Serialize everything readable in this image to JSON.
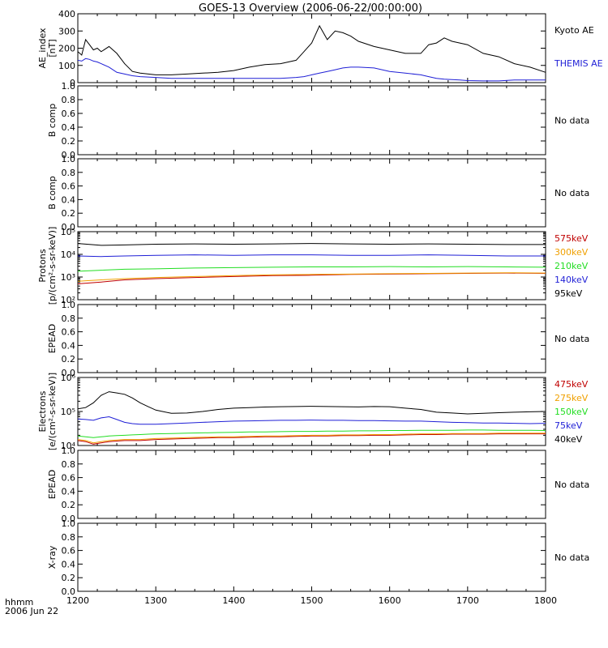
{
  "title": "GOES-13 Overview (2006-06-22/00:00:00)",
  "footer": {
    "line1": "hhmm",
    "line2": "2006 Jun 22"
  },
  "x_ticks": [
    "1200",
    "1300",
    "1400",
    "1500",
    "1600",
    "1700",
    "1800"
  ],
  "colors": {
    "black": "#000000",
    "blue": "#1f1fd6",
    "green": "#22dd22",
    "orange": "#f0a000",
    "red": "#c00000"
  },
  "chart_data": [
    {
      "type": "line",
      "ylabel": [
        "AE_index",
        "[nT]"
      ],
      "ylim": [
        0,
        400
      ],
      "yticks": [
        "0",
        "100",
        "200",
        "300",
        "400"
      ],
      "x": [
        1200,
        1205,
        1210,
        1215,
        1220,
        1225,
        1230,
        1240,
        1250,
        1260,
        1270,
        1280,
        1300,
        1320,
        1340,
        1360,
        1380,
        1400,
        1420,
        1440,
        1460,
        1480,
        1490,
        1500,
        1510,
        1520,
        1530,
        1540,
        1550,
        1560,
        1580,
        1600,
        1620,
        1640,
        1650,
        1660,
        1670,
        1680,
        1690,
        1700,
        1720,
        1740,
        1760,
        1780,
        1800
      ],
      "series": [
        {
          "name": "Kyoto AE",
          "color": "#000000",
          "values": [
            180,
            160,
            250,
            220,
            190,
            200,
            180,
            210,
            170,
            110,
            65,
            55,
            45,
            45,
            50,
            55,
            60,
            70,
            90,
            105,
            110,
            130,
            180,
            230,
            330,
            250,
            300,
            290,
            270,
            240,
            210,
            190,
            170,
            170,
            220,
            230,
            260,
            240,
            230,
            220,
            170,
            150,
            110,
            90,
            60
          ]
        },
        {
          "name": "THEMIS AE",
          "color": "#1f1fd6",
          "values": [
            130,
            125,
            140,
            135,
            125,
            120,
            110,
            90,
            60,
            50,
            40,
            35,
            30,
            25,
            25,
            25,
            25,
            25,
            25,
            25,
            25,
            30,
            35,
            45,
            55,
            65,
            75,
            85,
            90,
            90,
            85,
            65,
            55,
            45,
            35,
            25,
            20,
            18,
            15,
            12,
            10,
            10,
            15,
            15,
            15
          ]
        }
      ]
    },
    {
      "type": "line",
      "ylabel": [
        "B comp"
      ],
      "ylim": [
        0,
        1
      ],
      "yticks": [
        "0.0",
        "0.2",
        "0.4",
        "0.6",
        "0.8",
        "1.0"
      ],
      "status": "No data",
      "series": []
    },
    {
      "type": "line",
      "ylabel": [
        "B comp"
      ],
      "ylim": [
        0,
        1
      ],
      "yticks": [
        "0.0",
        "0.2",
        "0.4",
        "0.6",
        "0.8",
        "1.0"
      ],
      "status": "No data",
      "series": []
    },
    {
      "type": "line",
      "log_y": true,
      "ylabel": [
        "Protons",
        "[p/(cm²-s-sr-keV)]"
      ],
      "ylim": [
        100,
        100000
      ],
      "yticks": [
        "10²",
        "10³",
        "10⁴",
        "10⁵"
      ],
      "x": [
        1200,
        1230,
        1260,
        1300,
        1350,
        1400,
        1450,
        1500,
        1550,
        1600,
        1650,
        1700,
        1750,
        1800
      ],
      "series": [
        {
          "name": "575keV",
          "color": "#c00000",
          "values": [
            500,
            600,
            750,
            850,
            950,
            1050,
            1150,
            1200,
            1300,
            1350,
            1400,
            1450,
            1500,
            1450
          ]
        },
        {
          "name": "300keV",
          "color": "#f0a000",
          "values": [
            650,
            750,
            850,
            950,
            1050,
            1150,
            1250,
            1300,
            1350,
            1400,
            1450,
            1500,
            1550,
            1500
          ]
        },
        {
          "name": "210keV",
          "color": "#22dd22",
          "values": [
            1800,
            2000,
            2200,
            2300,
            2500,
            2600,
            2700,
            2800,
            2800,
            2900,
            2800,
            2900,
            2800,
            2700
          ]
        },
        {
          "name": "140keV",
          "color": "#1f1fd6",
          "values": [
            8500,
            8000,
            8500,
            9000,
            9500,
            9000,
            9500,
            9500,
            9000,
            9000,
            9500,
            9000,
            8500,
            8500
          ]
        },
        {
          "name": "95keV",
          "color": "#000000",
          "values": [
            30000,
            25000,
            26000,
            28000,
            29000,
            28000,
            29000,
            30000,
            29000,
            28000,
            29000,
            28000,
            27000,
            27000
          ]
        }
      ]
    },
    {
      "type": "line",
      "ylabel": [
        "EPEAD"
      ],
      "ylim": [
        0,
        1
      ],
      "yticks": [
        "0.0",
        "0.2",
        "0.4",
        "0.6",
        "0.8",
        "1.0"
      ],
      "status": "No data",
      "series": []
    },
    {
      "type": "line",
      "log_y": true,
      "ylabel": [
        "Electrons",
        "[e/(cm²-s-sr-keV)]"
      ],
      "ylim": [
        10000,
        1000000
      ],
      "yticks": [
        "10⁴",
        "10⁵",
        "10⁶"
      ],
      "x": [
        1200,
        1210,
        1220,
        1230,
        1240,
        1250,
        1260,
        1270,
        1280,
        1290,
        1300,
        1320,
        1340,
        1360,
        1380,
        1400,
        1420,
        1440,
        1460,
        1480,
        1500,
        1520,
        1540,
        1560,
        1580,
        1600,
        1620,
        1640,
        1660,
        1680,
        1700,
        1720,
        1740,
        1760,
        1780,
        1800
      ],
      "series": [
        {
          "name": "475keV",
          "color": "#c00000",
          "values": [
            14000,
            13000,
            11000,
            12000,
            13000,
            13500,
            14000,
            14000,
            14000,
            14500,
            15000,
            15500,
            16000,
            16500,
            17000,
            17000,
            17500,
            18000,
            18000,
            18500,
            19000,
            19000,
            19500,
            19500,
            20000,
            20000,
            20500,
            21000,
            21000,
            21500,
            21500,
            21500,
            22000,
            22000,
            22000,
            22000
          ]
        },
        {
          "name": "275keV",
          "color": "#f0a000",
          "values": [
            15000,
            14000,
            12000,
            13000,
            14000,
            14500,
            15000,
            15000,
            15000,
            15500,
            16000,
            16500,
            17000,
            17500,
            18000,
            18000,
            18500,
            19000,
            19000,
            19500,
            20000,
            20000,
            20500,
            20500,
            21000,
            21000,
            21500,
            22000,
            22000,
            22500,
            22500,
            22500,
            23000,
            23000,
            23000,
            23000
          ]
        },
        {
          "name": "150keV",
          "color": "#22dd22",
          "values": [
            19000,
            18000,
            17000,
            18000,
            19000,
            19500,
            20000,
            20500,
            21000,
            21500,
            22000,
            22500,
            23000,
            23500,
            24000,
            24500,
            25000,
            25000,
            25500,
            26000,
            26000,
            26500,
            26500,
            27000,
            27000,
            27500,
            27500,
            28000,
            28000,
            28000,
            28500,
            28500,
            28000,
            28000,
            28000,
            27500
          ]
        },
        {
          "name": "75keV",
          "color": "#1f1fd6",
          "values": [
            60000,
            58000,
            55000,
            65000,
            70000,
            58000,
            48000,
            44000,
            42000,
            42000,
            42000,
            44000,
            46000,
            48000,
            50000,
            52000,
            53000,
            54000,
            55000,
            55000,
            56000,
            55000,
            55000,
            54000,
            54000,
            53000,
            52000,
            52000,
            50000,
            48000,
            47000,
            46000,
            46000,
            45000,
            44000,
            45000
          ]
        },
        {
          "name": "40keV",
          "color": "#000000",
          "values": [
            120000,
            130000,
            180000,
            300000,
            380000,
            350000,
            320000,
            250000,
            180000,
            140000,
            110000,
            88000,
            90000,
            100000,
            115000,
            125000,
            130000,
            135000,
            138000,
            140000,
            142000,
            140000,
            138000,
            136000,
            140000,
            138000,
            125000,
            115000,
            95000,
            90000,
            85000,
            88000,
            92000,
            95000,
            98000,
            100000
          ]
        }
      ]
    },
    {
      "type": "line",
      "ylabel": [
        "EPEAD"
      ],
      "ylim": [
        0,
        1
      ],
      "yticks": [
        "0.0",
        "0.2",
        "0.4",
        "0.6",
        "0.8",
        "1.0"
      ],
      "status": "No data",
      "series": []
    },
    {
      "type": "line",
      "ylabel": [
        "X-ray"
      ],
      "ylim": [
        0,
        1
      ],
      "yticks": [
        "0.0",
        "0.2",
        "0.4",
        "0.6",
        "0.8",
        "1.0"
      ],
      "status": "No data",
      "series": []
    }
  ]
}
